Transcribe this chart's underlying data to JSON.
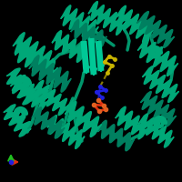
{
  "background_color": "#000000",
  "protein_color": "#00a878",
  "protein_color_dark": "#008060",
  "protein_color_light": "#00c896",
  "ligand_yellow": "#c8b400",
  "ligand_blue": "#2020e0",
  "ligand_red": "#e03010",
  "ligand_orange": "#e06020",
  "axis_x_color": "#e03010",
  "axis_y_color": "#20c020",
  "axis_z_color": "#2020e0",
  "figsize": [
    2.0,
    2.0
  ],
  "dpi": 100
}
